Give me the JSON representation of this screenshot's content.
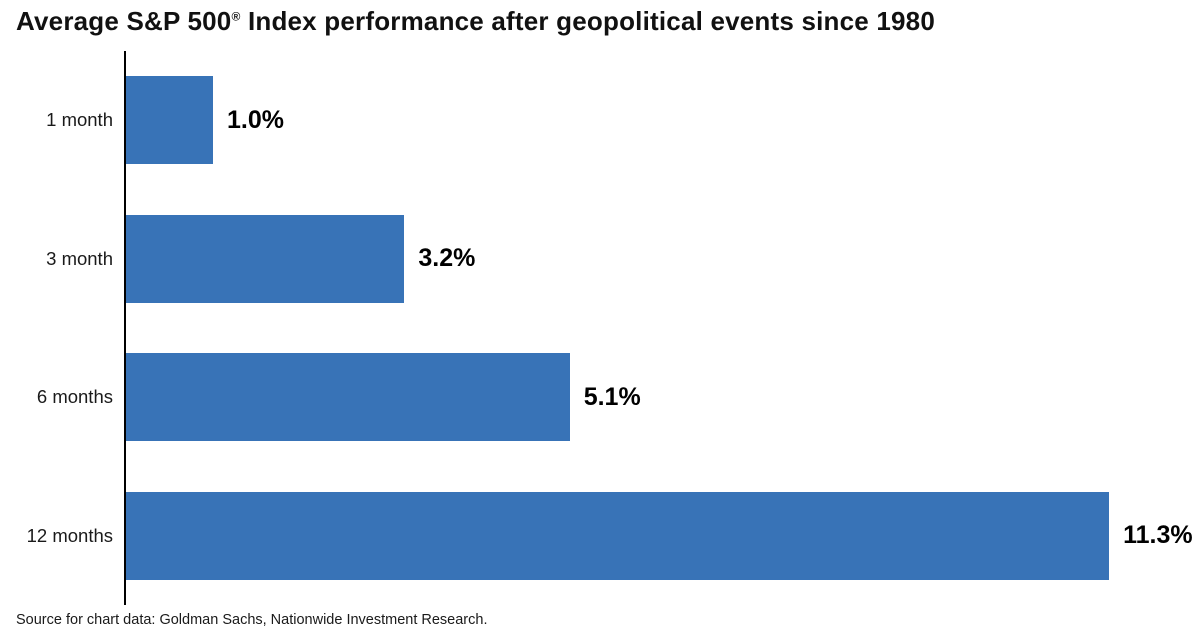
{
  "title": {
    "prefix": "Average S&P 500",
    "registered_mark": "®",
    "suffix": " Index performance after geopolitical events since 1980"
  },
  "source_note": "Source for chart data: Goldman Sachs, Nationwide Investment Research.",
  "colors": {
    "bar": "#3873B7",
    "axis": "#000000",
    "title_text": "#111111",
    "label_text": "#1a1a1a"
  },
  "chart_data": {
    "type": "bar",
    "orientation": "horizontal",
    "title": "Average S&P 500® Index performance after geopolitical events since 1980",
    "categories": [
      "1 month",
      "3 month",
      "6 months",
      "12 months"
    ],
    "values": [
      1.0,
      3.2,
      5.1,
      11.3
    ],
    "value_labels": [
      "1.0%",
      "3.2%",
      "5.1%",
      "11.3%"
    ],
    "xlabel": "",
    "ylabel": "",
    "xlim": [
      0,
      12.4
    ],
    "grid": false,
    "legend": false,
    "value_label_position": "right-of-bar",
    "source": "Source for chart data: Goldman Sachs, Nationwide Investment Research."
  }
}
